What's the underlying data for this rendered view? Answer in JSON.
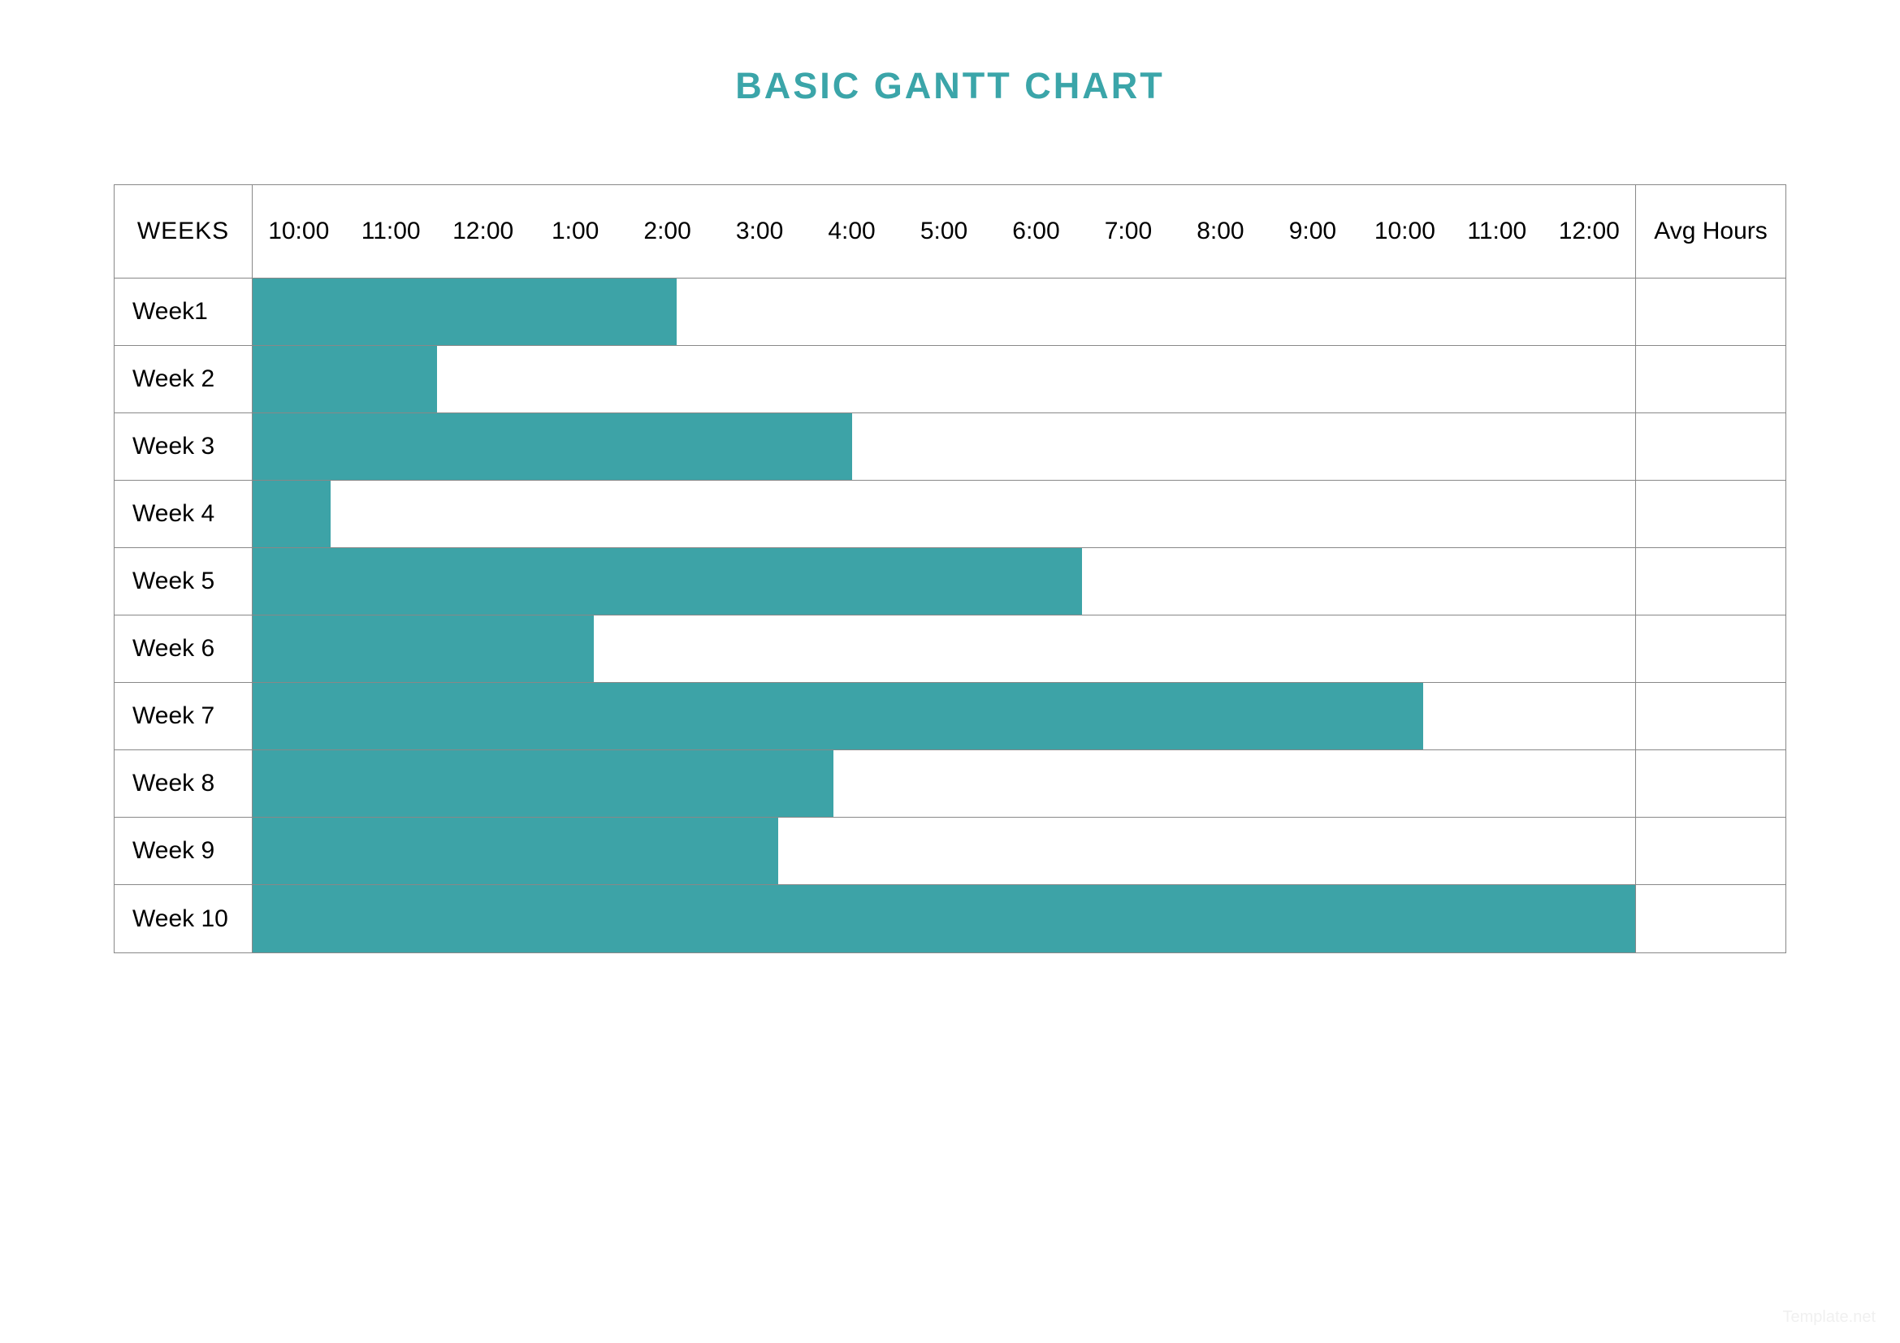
{
  "title": "BASIC GANTT CHART",
  "title_color": "#3ba5a9",
  "layout": {
    "background_color": "#ffffff",
    "border_color": "#888888",
    "text_color": "#000000",
    "header_row_height": 115,
    "data_row_height": 83,
    "week_col_width": 170,
    "avg_col_width": 185
  },
  "gantt": {
    "type": "gantt-bar",
    "week_header": "WEEKS",
    "avg_header": "Avg Hours",
    "time_labels": [
      "10:00",
      "11:00",
      "12:00",
      "1:00",
      "2:00",
      "3:00",
      "4:00",
      "5:00",
      "6:00",
      "7:00",
      "8:00",
      "9:00",
      "10:00",
      "11:00",
      "12:00"
    ],
    "time_count": 15,
    "bar_color": "#3da3a7",
    "rows": [
      {
        "label": "Week1",
        "start": 0,
        "span": 4.6,
        "avg": ""
      },
      {
        "label": "Week 2",
        "start": 0,
        "span": 2.0,
        "avg": ""
      },
      {
        "label": "Week 3",
        "start": 0,
        "span": 6.5,
        "avg": ""
      },
      {
        "label": "Week 4",
        "start": 0,
        "span": 0.85,
        "avg": ""
      },
      {
        "label": "Week 5",
        "start": 0,
        "span": 9.0,
        "avg": ""
      },
      {
        "label": "Week 6",
        "start": 0,
        "span": 3.7,
        "avg": ""
      },
      {
        "label": "Week 7",
        "start": 0,
        "span": 12.7,
        "avg": ""
      },
      {
        "label": "Week 8",
        "start": 0,
        "span": 6.3,
        "avg": ""
      },
      {
        "label": "Week 9",
        "start": 0,
        "span": 5.7,
        "avg": ""
      },
      {
        "label": "Week 10",
        "start": 0,
        "span": 15.0,
        "avg": ""
      }
    ]
  },
  "watermark": "Template.net"
}
